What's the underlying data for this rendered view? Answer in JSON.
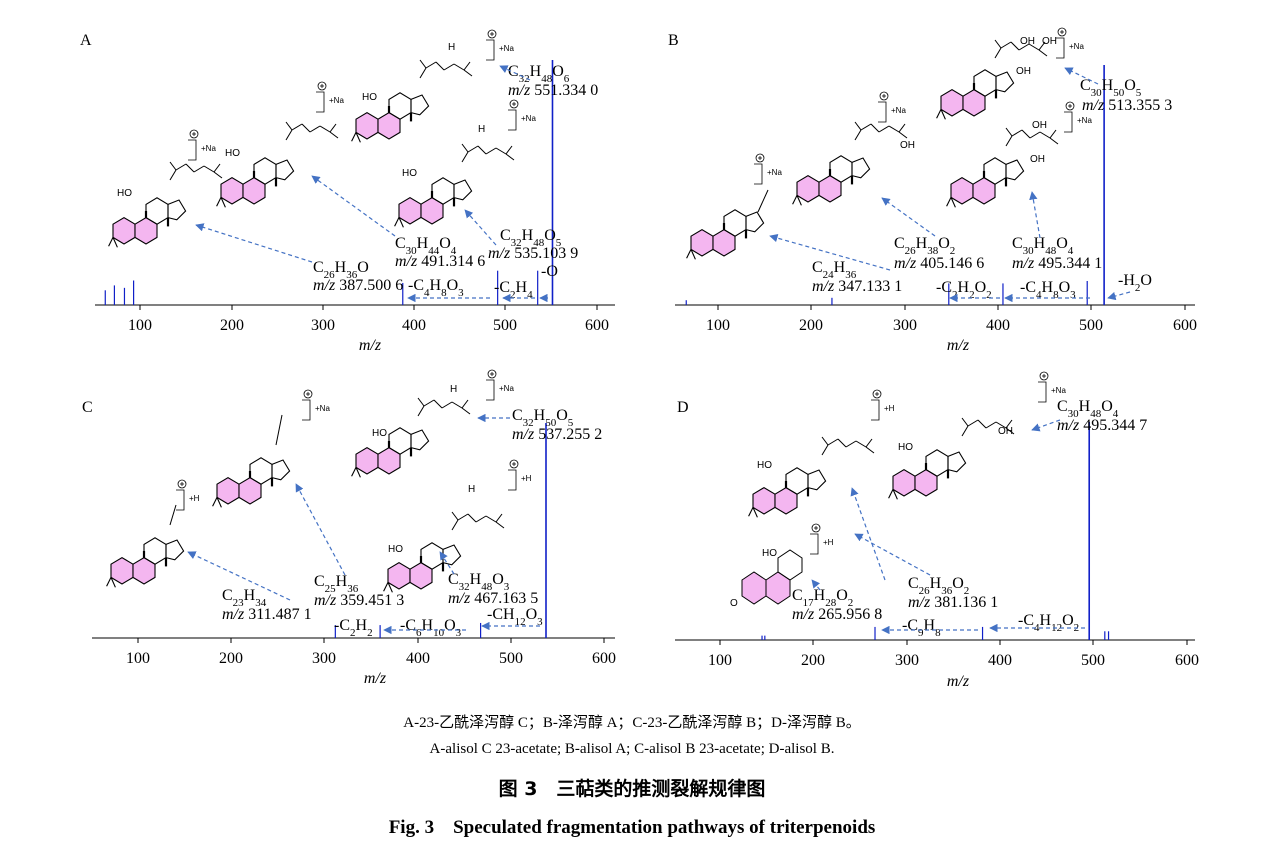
{
  "panels": [
    {
      "letter": "A",
      "xlabel": "m/z",
      "ticks": [
        "100",
        "200",
        "300",
        "400",
        "500",
        "600"
      ],
      "ions": [
        {
          "formula": "C32H48O6",
          "mz": "551.334 0"
        },
        {
          "formula": "C32H48O5",
          "mz": "535.103 9"
        },
        {
          "formula": "C30H44O4",
          "mz": "491.314 6"
        },
        {
          "formula": "C26H36O",
          "mz": "387.500 6"
        }
      ],
      "losses": [
        "-O",
        "-C2H4",
        "-C4H8O3"
      ],
      "peaks": [
        {
          "mz": 62,
          "rel": 0.06
        },
        {
          "mz": 72,
          "rel": 0.08
        },
        {
          "mz": 83,
          "rel": 0.07
        },
        {
          "mz": 93,
          "rel": 0.1
        },
        {
          "mz": 387.5,
          "rel": 0.09
        },
        {
          "mz": 491.3,
          "rel": 0.14
        },
        {
          "mz": 535.1,
          "rel": 0.14
        },
        {
          "mz": 551.3,
          "rel": 1.0
        }
      ]
    },
    {
      "letter": "B",
      "xlabel": "m/z",
      "ticks": [
        "100",
        "200",
        "300",
        "400",
        "500",
        "600"
      ],
      "ions": [
        {
          "formula": "C30H50O5",
          "mz": "513.355 3"
        },
        {
          "formula": "C30H48O4",
          "mz": "495.344 1"
        },
        {
          "formula": "C26H38O2",
          "mz": "405.146 6"
        },
        {
          "formula": "C24H36",
          "mz": "347.133 1"
        }
      ],
      "losses": [
        "-H2O",
        "-C4H8O3",
        "-C2H2O2"
      ],
      "peaks": [
        {
          "mz": 66,
          "rel": 0.02
        },
        {
          "mz": 222,
          "rel": 0.03
        },
        {
          "mz": 347.1,
          "rel": 0.09
        },
        {
          "mz": 405.1,
          "rel": 0.09
        },
        {
          "mz": 495.3,
          "rel": 0.1
        },
        {
          "mz": 513.4,
          "rel": 1.0
        }
      ]
    },
    {
      "letter": "C",
      "xlabel": "m/z",
      "ticks": [
        "100",
        "200",
        "300",
        "400",
        "500",
        "600"
      ],
      "ions": [
        {
          "formula": "C32H50O5",
          "mz": "537.255 2"
        },
        {
          "formula": "C32H48O3",
          "mz": "467.163 5"
        },
        {
          "formula": "C25H36",
          "mz": "359.451 3"
        },
        {
          "formula": "C23H34",
          "mz": "311.487 1"
        }
      ],
      "losses": [
        "-CH12O3",
        "-C6H10O3",
        "-C2H2"
      ],
      "peaks": [
        {
          "mz": 311.5,
          "rel": 0.06
        },
        {
          "mz": 359.5,
          "rel": 0.06
        },
        {
          "mz": 467.2,
          "rel": 0.07
        },
        {
          "mz": 537.3,
          "rel": 1.0
        }
      ]
    },
    {
      "letter": "D",
      "xlabel": "m/z",
      "ticks": [
        "100",
        "200",
        "300",
        "400",
        "500",
        "600"
      ],
      "ions": [
        {
          "formula": "C30H48O4",
          "mz": "495.344 7"
        },
        {
          "formula": "C26H36O2",
          "mz": "381.136 1"
        },
        {
          "formula": "C17H28O2",
          "mz": "265.956 8"
        }
      ],
      "losses": [
        "-C4H12O2",
        "-C9H8"
      ],
      "peaks": [
        {
          "mz": 145,
          "rel": 0.02
        },
        {
          "mz": 148,
          "rel": 0.02
        },
        {
          "mz": 265.96,
          "rel": 0.06
        },
        {
          "mz": 381.1,
          "rel": 0.06
        },
        {
          "mz": 495.3,
          "rel": 1.0
        },
        {
          "mz": 512,
          "rel": 0.04
        },
        {
          "mz": 516,
          "rel": 0.04
        }
      ]
    }
  ],
  "adduct_labels": {
    "na": "+Na",
    "h": "+H",
    "charge": "+"
  },
  "atoms": {
    "oh": "OH",
    "ho": "HO",
    "h": "H",
    "o": "O"
  },
  "caption": {
    "zh_legend": "A-23-乙酰泽泻醇 C；B-泽泻醇 A；C-23-乙酰泽泻醇 B；D-泽泻醇 B。",
    "en_legend": "A-alisol C 23-acetate; B-alisol A; C-alisol B 23-acetate; D-alisol B.",
    "zh_title": "图 3　三萜类的推测裂解规律图",
    "en_title": "Fig. 3　Speculated fragmentation pathways of triterpenoids"
  },
  "colors": {
    "peak": "#1020c8",
    "arrow": "#4472c4",
    "ring": "#f4b6f0"
  }
}
